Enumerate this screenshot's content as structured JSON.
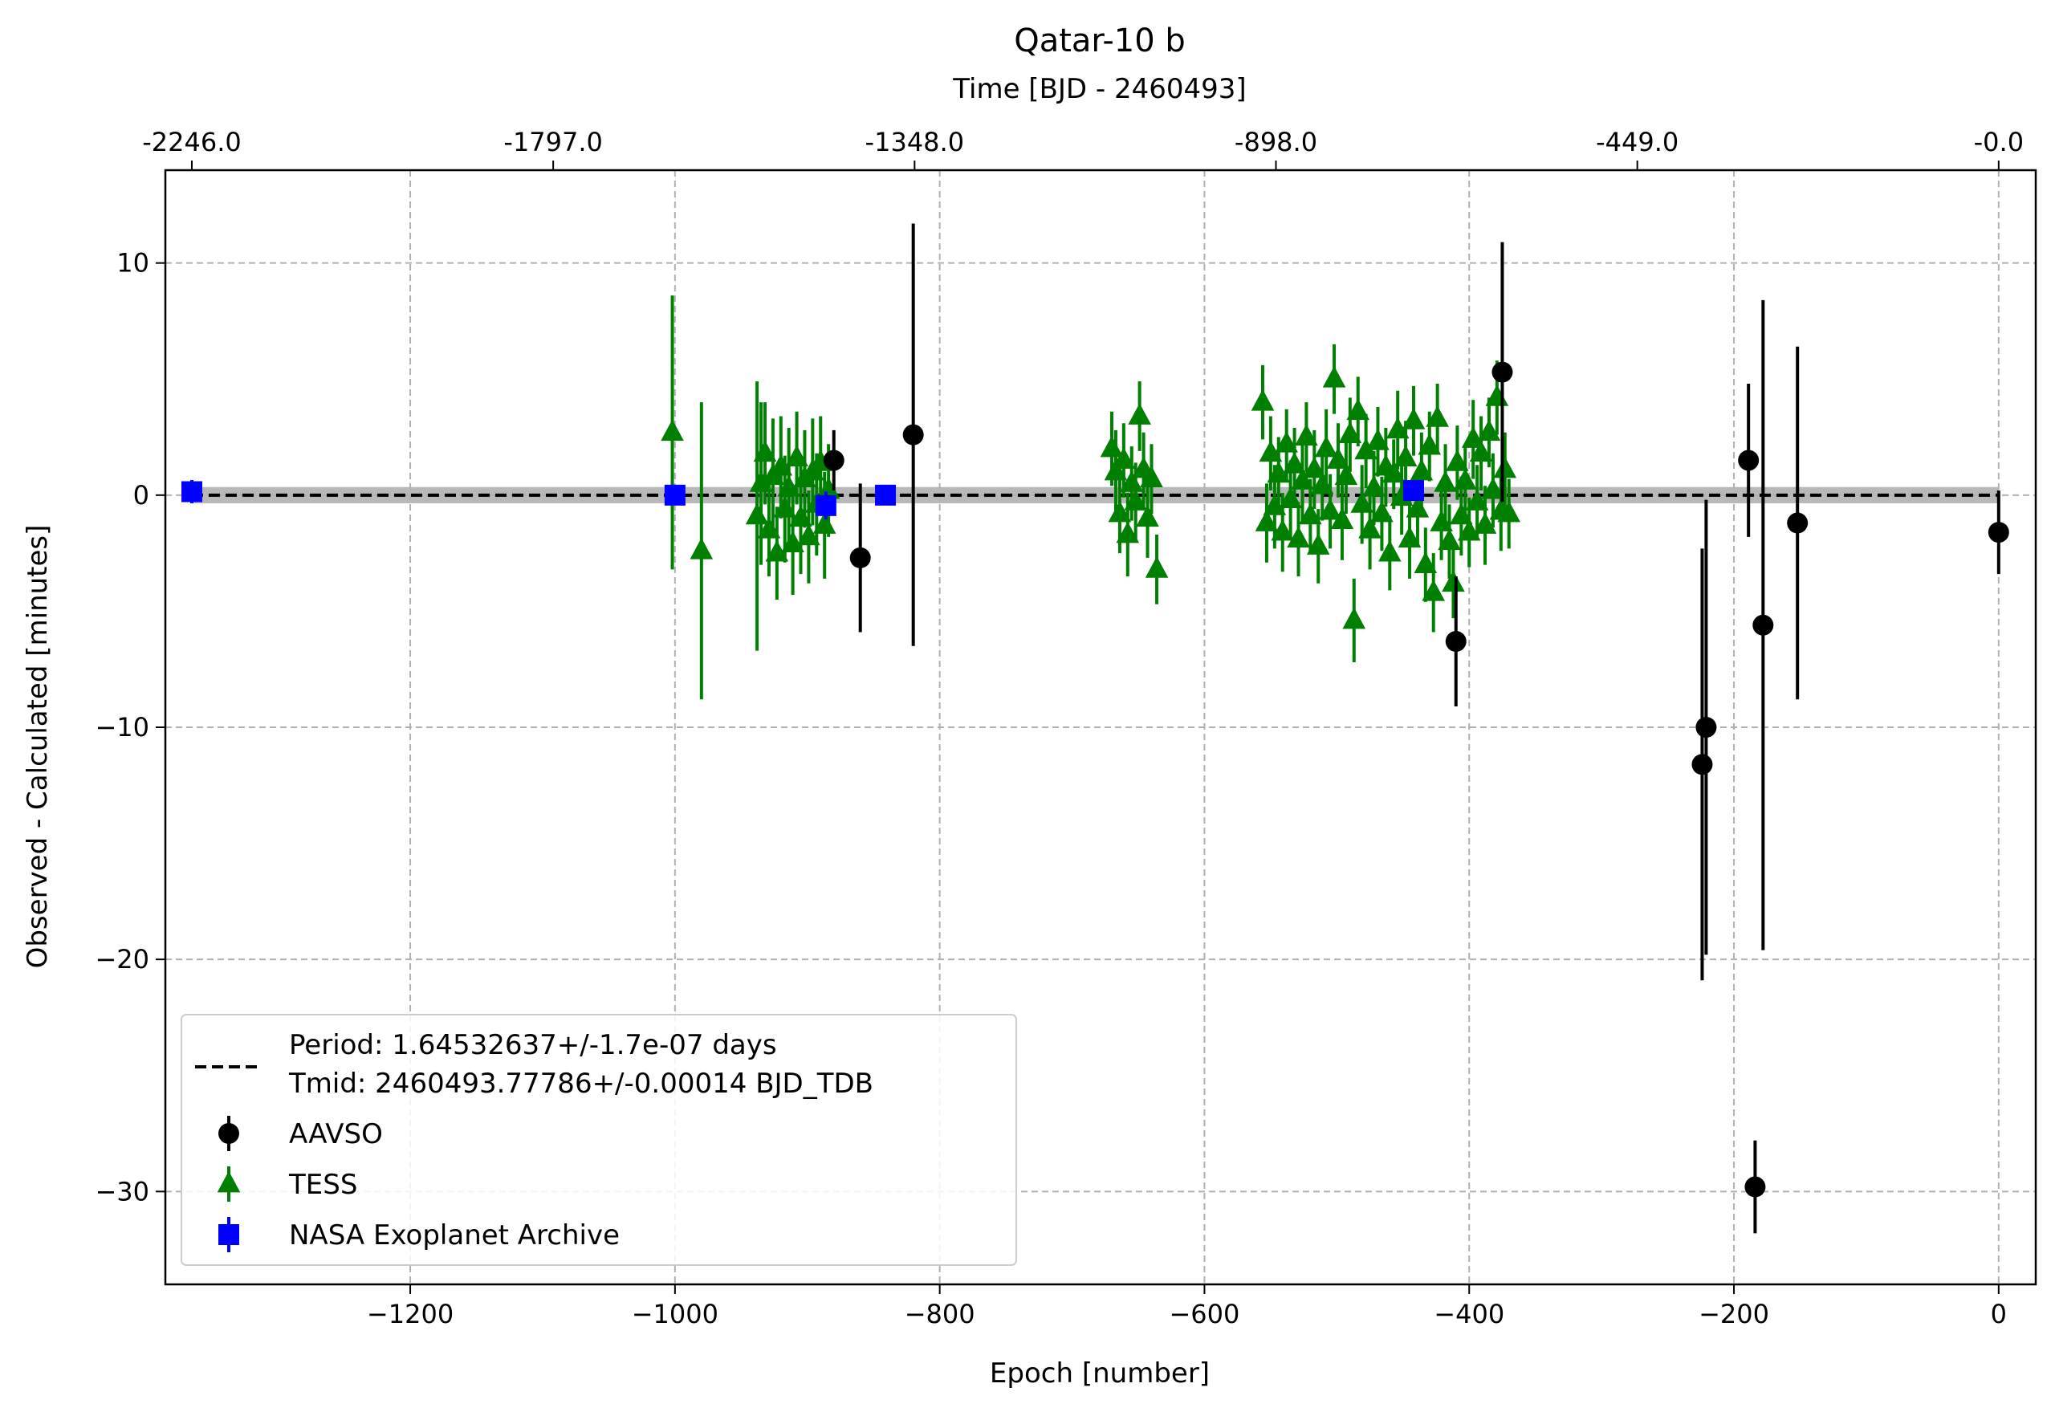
{
  "chart_data": {
    "type": "scatter",
    "title": "Qatar-10 b",
    "xlabel": "Epoch [number]",
    "ylabel": "Observed - Calculated [minutes]",
    "xlim": [
      -1385,
      28
    ],
    "ylim": [
      -34,
      14
    ],
    "xticks": [
      -1200,
      -1000,
      -800,
      -600,
      -400,
      -200,
      0
    ],
    "yticks": [
      10,
      0,
      -10,
      -20,
      -30
    ],
    "top_axis": {
      "label": "Time [BJD - 2460493]",
      "ticks": [
        {
          "epoch": -1365,
          "label": "-2246.0"
        },
        {
          "epoch": -1092,
          "label": "-1797.0"
        },
        {
          "epoch": -819,
          "label": "-1348.0"
        },
        {
          "epoch": -546,
          "label": "-898.0"
        },
        {
          "epoch": -273,
          "label": "-449.0"
        },
        {
          "epoch": 0,
          "label": "-0.0"
        }
      ]
    },
    "grid": true,
    "fit": {
      "label_line1": "Period: 1.64532637+/-1.7e-07 days",
      "label_line2": "Tmid: 2460493.77786+/-0.00014 BJD_TDB",
      "x_range": [
        -1365,
        0
      ],
      "y": 0,
      "band": 0.35,
      "color": "#000000",
      "band_color": "#b0b0b0"
    },
    "legend_location": "lower-left",
    "series": [
      {
        "name": "AAVSO",
        "marker": "circle",
        "color": "#000000",
        "points": [
          {
            "x": -880,
            "y": 1.5,
            "err": 1.3
          },
          {
            "x": -860,
            "y": -2.7,
            "err": 3.2
          },
          {
            "x": -820,
            "y": 2.6,
            "err": 9.1
          },
          {
            "x": -410,
            "y": -6.3,
            "err": 2.8
          },
          {
            "x": -375,
            "y": 5.3,
            "err": 5.6
          },
          {
            "x": -224,
            "y": -11.6,
            "err": 9.3
          },
          {
            "x": -221,
            "y": -10.0,
            "err": 9.8
          },
          {
            "x": -189,
            "y": 1.5,
            "err": 3.3
          },
          {
            "x": -184,
            "y": -29.8,
            "err": 2.0
          },
          {
            "x": -178,
            "y": -5.6,
            "err": 14.0
          },
          {
            "x": -152,
            "y": -1.2,
            "err": 7.6
          },
          {
            "x": 0,
            "y": -1.6,
            "err": 1.8
          }
        ]
      },
      {
        "name": "TESS",
        "marker": "triangle",
        "color": "#008000",
        "points": [
          {
            "x": -1002,
            "y": 2.7,
            "err": 5.9
          },
          {
            "x": -980,
            "y": -2.4,
            "err": 6.4
          },
          {
            "x": -938,
            "y": -0.9,
            "err": 5.8
          },
          {
            "x": -935,
            "y": 0.5,
            "err": 3.5
          },
          {
            "x": -932,
            "y": 1.8,
            "err": 2.2
          },
          {
            "x": -929,
            "y": -1.5,
            "err": 2.0
          },
          {
            "x": -926,
            "y": 0.8,
            "err": 2.5
          },
          {
            "x": -923,
            "y": -2.5,
            "err": 2.0
          },
          {
            "x": -920,
            "y": 1.2,
            "err": 2.2
          },
          {
            "x": -917,
            "y": -0.6,
            "err": 2.3
          },
          {
            "x": -914,
            "y": 0.3,
            "err": 2.6
          },
          {
            "x": -911,
            "y": -2.1,
            "err": 2.2
          },
          {
            "x": -908,
            "y": 1.6,
            "err": 2.0
          },
          {
            "x": -905,
            "y": -1.0,
            "err": 2.4
          },
          {
            "x": -902,
            "y": 0.7,
            "err": 2.1
          },
          {
            "x": -899,
            "y": -1.8,
            "err": 2.0
          },
          {
            "x": -896,
            "y": 1.0,
            "err": 2.3
          },
          {
            "x": -893,
            "y": -0.4,
            "err": 2.2
          },
          {
            "x": -890,
            "y": 1.4,
            "err": 2.0
          },
          {
            "x": -887,
            "y": -1.3,
            "err": 2.3
          },
          {
            "x": -884,
            "y": 0.2,
            "err": 2.0
          },
          {
            "x": -670,
            "y": 2.0,
            "err": 1.6
          },
          {
            "x": -667,
            "y": 1.0,
            "err": 1.8
          },
          {
            "x": -664,
            "y": -0.8,
            "err": 1.7
          },
          {
            "x": -661,
            "y": 1.5,
            "err": 1.6
          },
          {
            "x": -658,
            "y": -1.7,
            "err": 1.8
          },
          {
            "x": -655,
            "y": 0.5,
            "err": 1.6
          },
          {
            "x": -652,
            "y": -0.3,
            "err": 1.7
          },
          {
            "x": -649,
            "y": 3.4,
            "err": 1.5
          },
          {
            "x": -646,
            "y": 1.1,
            "err": 1.6
          },
          {
            "x": -643,
            "y": -1.0,
            "err": 1.7
          },
          {
            "x": -640,
            "y": 0.7,
            "err": 1.5
          },
          {
            "x": -636,
            "y": -3.2,
            "err": 1.5
          },
          {
            "x": -556,
            "y": 4.0,
            "err": 1.6
          },
          {
            "x": -553,
            "y": -1.2,
            "err": 1.7
          },
          {
            "x": -550,
            "y": 1.8,
            "err": 1.6
          },
          {
            "x": -547,
            "y": -0.5,
            "err": 1.8
          },
          {
            "x": -544,
            "y": 0.9,
            "err": 1.6
          },
          {
            "x": -541,
            "y": -1.6,
            "err": 1.7
          },
          {
            "x": -538,
            "y": 2.2,
            "err": 1.5
          },
          {
            "x": -535,
            "y": -0.2,
            "err": 1.7
          },
          {
            "x": -532,
            "y": 1.3,
            "err": 1.6
          },
          {
            "x": -529,
            "y": -1.9,
            "err": 1.6
          },
          {
            "x": -526,
            "y": 0.6,
            "err": 1.7
          },
          {
            "x": -523,
            "y": 2.5,
            "err": 1.5
          },
          {
            "x": -520,
            "y": -0.9,
            "err": 1.6
          },
          {
            "x": -517,
            "y": 1.1,
            "err": 1.7
          },
          {
            "x": -514,
            "y": -2.2,
            "err": 1.6
          },
          {
            "x": -511,
            "y": 0.4,
            "err": 1.5
          },
          {
            "x": -508,
            "y": 2.0,
            "err": 1.7
          },
          {
            "x": -505,
            "y": -0.7,
            "err": 1.6
          },
          {
            "x": -502,
            "y": 5.0,
            "err": 1.5
          },
          {
            "x": -499,
            "y": 1.5,
            "err": 1.6
          },
          {
            "x": -496,
            "y": -1.1,
            "err": 1.7
          },
          {
            "x": -493,
            "y": 0.8,
            "err": 1.6
          },
          {
            "x": -490,
            "y": 2.6,
            "err": 1.6
          },
          {
            "x": -487,
            "y": -5.4,
            "err": 1.8
          },
          {
            "x": -484,
            "y": 3.6,
            "err": 1.5
          },
          {
            "x": -481,
            "y": -0.4,
            "err": 1.7
          },
          {
            "x": -478,
            "y": 1.9,
            "err": 1.6
          },
          {
            "x": -475,
            "y": -1.5,
            "err": 1.7
          },
          {
            "x": -472,
            "y": 0.3,
            "err": 1.6
          },
          {
            "x": -469,
            "y": 2.3,
            "err": 1.5
          },
          {
            "x": -466,
            "y": -0.8,
            "err": 1.6
          },
          {
            "x": -463,
            "y": 1.2,
            "err": 1.7
          },
          {
            "x": -460,
            "y": -2.5,
            "err": 1.6
          },
          {
            "x": -457,
            "y": 0.9,
            "err": 1.5
          },
          {
            "x": -454,
            "y": 2.8,
            "err": 1.7
          },
          {
            "x": -451,
            "y": -0.1,
            "err": 1.6
          },
          {
            "x": -448,
            "y": 1.6,
            "err": 1.6
          },
          {
            "x": -445,
            "y": -1.9,
            "err": 1.7
          },
          {
            "x": -442,
            "y": 3.2,
            "err": 1.5
          },
          {
            "x": -439,
            "y": -0.6,
            "err": 1.6
          },
          {
            "x": -436,
            "y": 1.0,
            "err": 1.7
          },
          {
            "x": -433,
            "y": -3.0,
            "err": 1.6
          },
          {
            "x": -430,
            "y": 2.1,
            "err": 1.5
          },
          {
            "x": -427,
            "y": -4.2,
            "err": 1.7
          },
          {
            "x": -424,
            "y": 3.3,
            "err": 1.5
          },
          {
            "x": -421,
            "y": -1.2,
            "err": 1.6
          },
          {
            "x": -418,
            "y": 0.5,
            "err": 1.7
          },
          {
            "x": -415,
            "y": -2.0,
            "err": 1.6
          },
          {
            "x": -412,
            "y": -3.8,
            "err": 1.5
          },
          {
            "x": -409,
            "y": 1.4,
            "err": 1.6
          },
          {
            "x": -406,
            "y": -0.9,
            "err": 1.7
          },
          {
            "x": -403,
            "y": 0.6,
            "err": 1.6
          },
          {
            "x": -400,
            "y": -1.6,
            "err": 1.5
          },
          {
            "x": -397,
            "y": 2.4,
            "err": 1.7
          },
          {
            "x": -394,
            "y": -0.3,
            "err": 1.6
          },
          {
            "x": -391,
            "y": 1.8,
            "err": 1.6
          },
          {
            "x": -388,
            "y": -1.3,
            "err": 1.7
          },
          {
            "x": -385,
            "y": 2.7,
            "err": 1.5
          },
          {
            "x": -382,
            "y": 0.2,
            "err": 1.6
          },
          {
            "x": -379,
            "y": 4.2,
            "err": 1.6
          },
          {
            "x": -376,
            "y": -0.7,
            "err": 1.7
          },
          {
            "x": -373,
            "y": 1.1,
            "err": 1.6
          },
          {
            "x": -370,
            "y": -0.8,
            "err": 1.5
          }
        ]
      },
      {
        "name": "NASA Exoplanet Archive",
        "marker": "square",
        "color": "#0000ff",
        "points": [
          {
            "x": -1365,
            "y": 0.15,
            "err": 0.5
          },
          {
            "x": -1000,
            "y": 0.0,
            "err": 0.2
          },
          {
            "x": -886,
            "y": -0.45,
            "err": 0.6
          },
          {
            "x": -841,
            "y": 0.0,
            "err": 0.2
          },
          {
            "x": -442,
            "y": 0.2,
            "err": 0.4
          }
        ]
      }
    ]
  }
}
